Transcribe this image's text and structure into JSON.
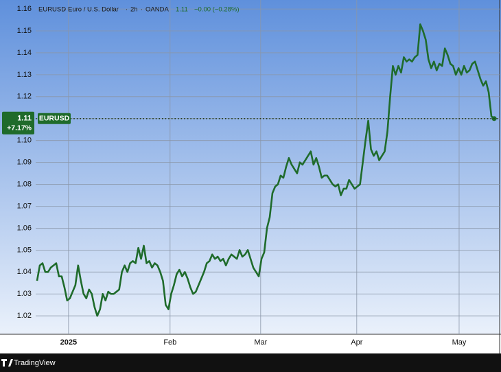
{
  "chart_data": {
    "type": "line",
    "symbol": "EURUSD",
    "description": "Euro / U.S. Dollar",
    "interval": "2h",
    "exchange": "OANDA",
    "header_price": "1.11",
    "header_change": "−0.00 (−0.28%)",
    "last_price": 1.11,
    "change_pct": "+7.17%",
    "brand": "TradingView",
    "series": [
      {
        "name": "EURUSD",
        "color": "#1f6b2b",
        "values": [
          1.036,
          1.043,
          1.044,
          1.04,
          1.04,
          1.042,
          1.043,
          1.044,
          1.038,
          1.038,
          1.033,
          1.027,
          1.028,
          1.031,
          1.034,
          1.043,
          1.036,
          1.03,
          1.028,
          1.032,
          1.03,
          1.024,
          1.02,
          1.023,
          1.03,
          1.027,
          1.031,
          1.03,
          1.03,
          1.031,
          1.032,
          1.04,
          1.043,
          1.04,
          1.044,
          1.045,
          1.044,
          1.051,
          1.046,
          1.052,
          1.044,
          1.045,
          1.042,
          1.044,
          1.043,
          1.04,
          1.036,
          1.025,
          1.023,
          1.03,
          1.034,
          1.039,
          1.041,
          1.038,
          1.04,
          1.037,
          1.033,
          1.03,
          1.031,
          1.034,
          1.037,
          1.04,
          1.044,
          1.045,
          1.048,
          1.046,
          1.047,
          1.045,
          1.046,
          1.043,
          1.046,
          1.048,
          1.047,
          1.046,
          1.05,
          1.047,
          1.048,
          1.05,
          1.046,
          1.042,
          1.04,
          1.038,
          1.046,
          1.049,
          1.06,
          1.065,
          1.076,
          1.079,
          1.08,
          1.084,
          1.083,
          1.088,
          1.092,
          1.089,
          1.087,
          1.085,
          1.09,
          1.089,
          1.091,
          1.093,
          1.095,
          1.089,
          1.092,
          1.088,
          1.083,
          1.084,
          1.084,
          1.082,
          1.08,
          1.079,
          1.08,
          1.075,
          1.078,
          1.078,
          1.082,
          1.08,
          1.078,
          1.079,
          1.08,
          1.09,
          1.1,
          1.109,
          1.096,
          1.093,
          1.095,
          1.091,
          1.093,
          1.095,
          1.104,
          1.12,
          1.134,
          1.13,
          1.134,
          1.131,
          1.138,
          1.136,
          1.137,
          1.136,
          1.138,
          1.139,
          1.153,
          1.15,
          1.146,
          1.137,
          1.133,
          1.136,
          1.132,
          1.135,
          1.134,
          1.142,
          1.139,
          1.135,
          1.134,
          1.13,
          1.133,
          1.13,
          1.134,
          1.131,
          1.132,
          1.135,
          1.136,
          1.132,
          1.128,
          1.125,
          1.127,
          1.122,
          1.111,
          1.11
        ]
      }
    ],
    "xlim": [
      -0.5,
      169.0
    ],
    "xticks": [
      {
        "value": 11.5,
        "label": "2025"
      },
      {
        "value": 48.6,
        "label": "Feb"
      },
      {
        "value": 81.7,
        "label": "Mar"
      },
      {
        "value": 116.8,
        "label": "Apr"
      },
      {
        "value": 154.2,
        "label": "May"
      }
    ],
    "ylim": [
      1.0116,
      1.1641
    ],
    "yticks": [
      1.02,
      1.03,
      1.04,
      1.05,
      1.06,
      1.07,
      1.08,
      1.09,
      {
        "value": 1.1,
        "label": "1.10"
      },
      1.11,
      1.12,
      1.13,
      1.14,
      1.15,
      1.16
    ],
    "grid": true
  }
}
